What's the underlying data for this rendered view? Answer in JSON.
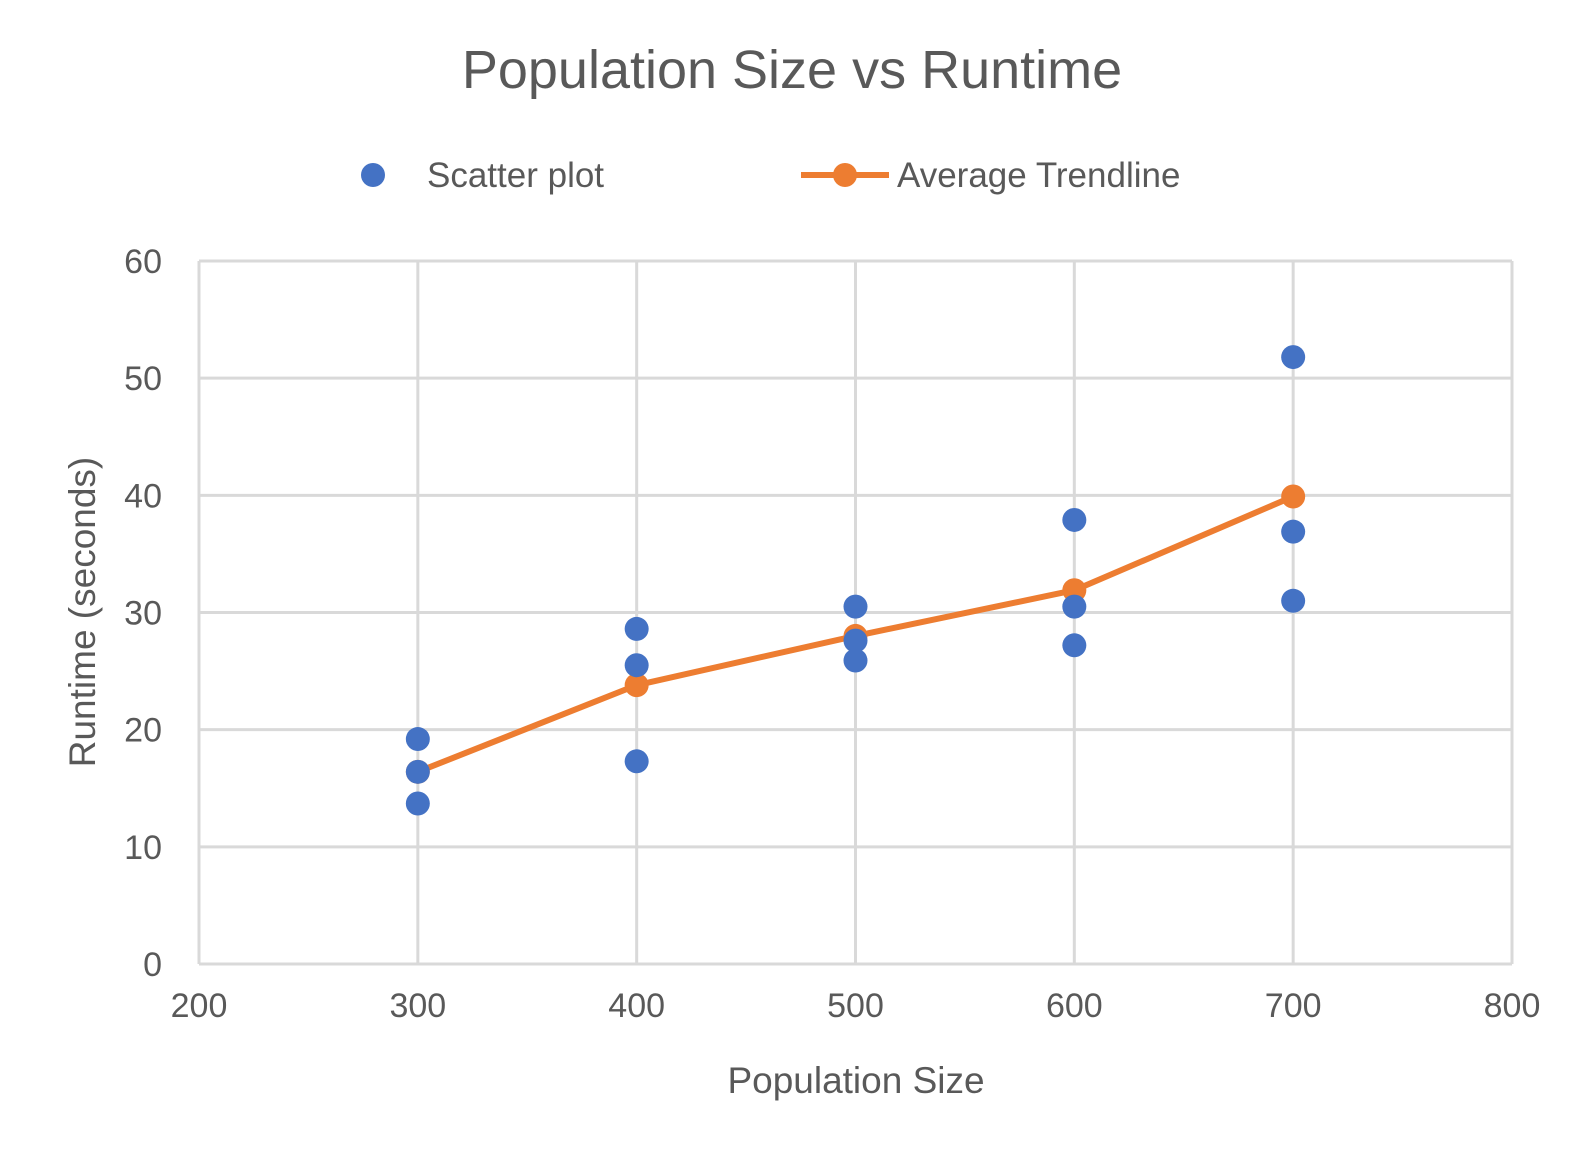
{
  "chart_data": {
    "type": "scatter",
    "title": "Population Size vs Runtime",
    "xlabel": "Population Size",
    "ylabel": "Runtime (seconds)",
    "xlim": [
      200,
      800
    ],
    "ylim": [
      0,
      60
    ],
    "xticks": [
      200,
      300,
      400,
      500,
      600,
      700,
      800
    ],
    "yticks": [
      0,
      10,
      20,
      30,
      40,
      50,
      60
    ],
    "grid": true,
    "legend_position": "top",
    "series": [
      {
        "name": "Scatter plot",
        "kind": "scatter",
        "color": "#4472C4",
        "points": [
          {
            "x": 300,
            "y": 19.2
          },
          {
            "x": 300,
            "y": 16.4
          },
          {
            "x": 300,
            "y": 13.7
          },
          {
            "x": 400,
            "y": 28.6
          },
          {
            "x": 400,
            "y": 25.5
          },
          {
            "x": 400,
            "y": 17.3
          },
          {
            "x": 500,
            "y": 30.5
          },
          {
            "x": 500,
            "y": 27.6
          },
          {
            "x": 500,
            "y": 25.9
          },
          {
            "x": 600,
            "y": 37.9
          },
          {
            "x": 600,
            "y": 30.5
          },
          {
            "x": 600,
            "y": 27.2
          },
          {
            "x": 700,
            "y": 51.8
          },
          {
            "x": 700,
            "y": 36.9
          },
          {
            "x": 700,
            "y": 31.0
          }
        ]
      },
      {
        "name": "Average Trendline",
        "kind": "line",
        "color": "#ED7D31",
        "points": [
          {
            "x": 300,
            "y": 16.4
          },
          {
            "x": 400,
            "y": 23.8
          },
          {
            "x": 500,
            "y": 28.0
          },
          {
            "x": 600,
            "y": 31.9
          },
          {
            "x": 700,
            "y": 39.9
          }
        ]
      }
    ]
  }
}
